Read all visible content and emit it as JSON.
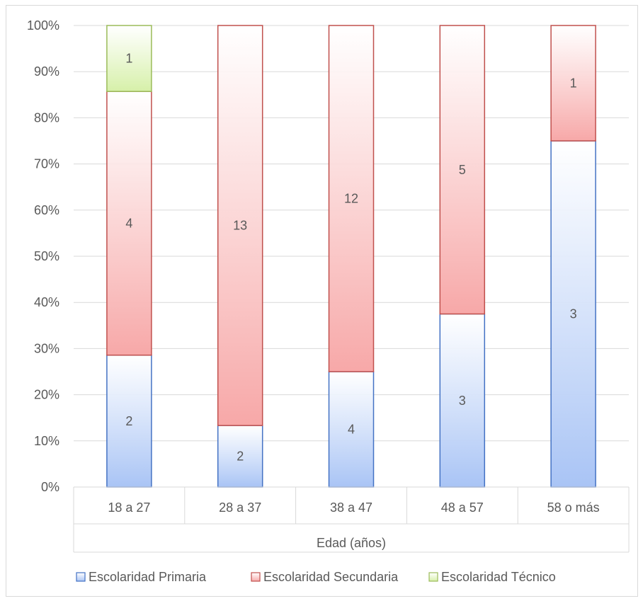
{
  "chart_data": {
    "type": "bar",
    "stacked": "percent",
    "categories": [
      "18 a 27",
      "28 a 37",
      "38 a 47",
      "48 a 57",
      "58 o más"
    ],
    "series": [
      {
        "name": "Escolaridad Primaria",
        "values": [
          2,
          2,
          4,
          3,
          3
        ],
        "color": "#a9c4f5",
        "border": "#4472c4"
      },
      {
        "name": "Escolaridad Secundaria",
        "values": [
          4,
          13,
          12,
          5,
          1
        ],
        "color": "#f7a8a8",
        "border": "#c0504d"
      },
      {
        "name": "Escolaridad Técnico",
        "values": [
          1,
          0,
          0,
          0,
          0
        ],
        "color": "#d6f0a8",
        "border": "#9bbb59"
      }
    ],
    "y_ticks": [
      "0%",
      "10%",
      "20%",
      "30%",
      "40%",
      "50%",
      "60%",
      "70%",
      "80%",
      "90%",
      "100%"
    ],
    "xlabel": "Edad (años)",
    "ylabel": "",
    "ylim": [
      0,
      100
    ],
    "grid": true,
    "legend_position": "bottom"
  }
}
